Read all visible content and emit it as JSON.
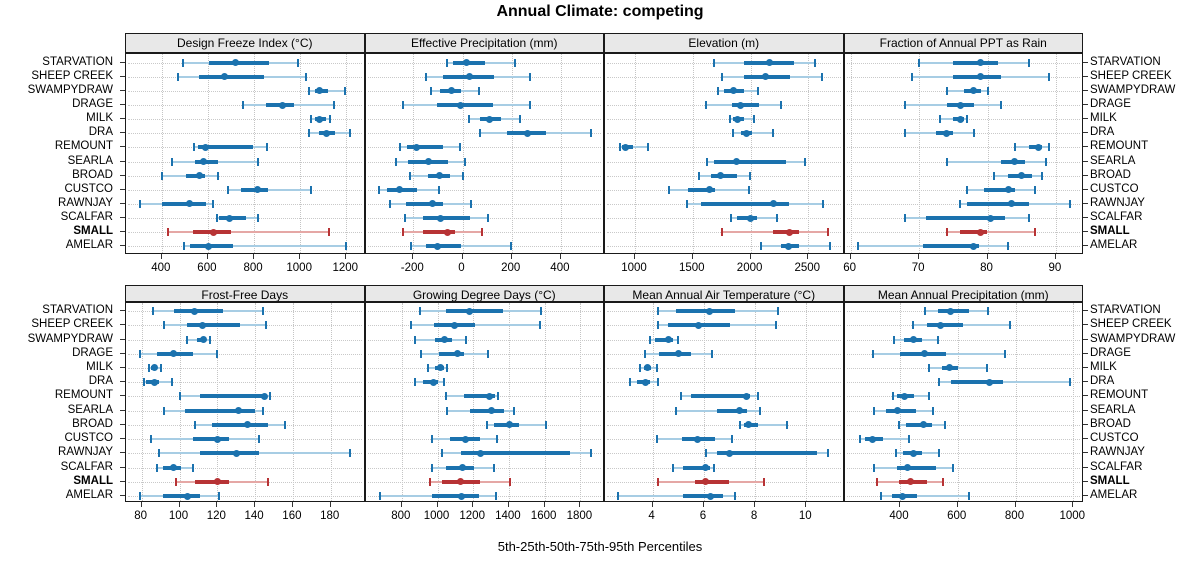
{
  "title": "Annual Climate: competing",
  "caption": "5th-25th-50th-75th-95th Percentiles",
  "sites": [
    "STARVATION",
    "SHEEP CREEK",
    "SWAMPYDRAW",
    "DRAGE",
    "MILK",
    "DRA",
    "REMOUNT",
    "SEARLA",
    "BROAD",
    "CUSTCO",
    "RAWNJAY",
    "SCALFAR",
    "SMALL",
    "AMELAR"
  ],
  "highlight_site": "SMALL",
  "colors": {
    "blue_dark": "#1b72ae",
    "blue_light": "#a7cde4",
    "red_dark": "#b73335",
    "red_light": "#e5a7a5",
    "strip_bg": "#e8e8e8",
    "grid": "#c4c4c4",
    "border": "#1a1a1a"
  },
  "chart_data": [
    {
      "type": "dotplot-percentiles",
      "title": "Design Freeze Index (°C)",
      "percentiles": [
        5,
        25,
        50,
        75,
        95
      ],
      "xlim": [
        245,
        1283
      ],
      "ticks": [
        400,
        600,
        800,
        1000,
        1200
      ],
      "values": [
        [
          490,
          605,
          720,
          865,
          990
        ],
        [
          470,
          560,
          670,
          845,
          1025
        ],
        [
          1040,
          1065,
          1085,
          1120,
          1195
        ],
        [
          750,
          850,
          925,
          975,
          1145
        ],
        [
          1045,
          1065,
          1085,
          1110,
          1130
        ],
        [
          1040,
          1080,
          1115,
          1150,
          1215
        ],
        [
          540,
          555,
          590,
          795,
          855
        ],
        [
          445,
          545,
          580,
          645,
          815
        ],
        [
          400,
          505,
          565,
          585,
          645
        ],
        [
          685,
          745,
          815,
          860,
          1045
        ],
        [
          305,
          400,
          520,
          590,
          620
        ],
        [
          640,
          650,
          695,
          765,
          815
        ],
        [
          425,
          535,
          625,
          700,
          1125
        ],
        [
          497,
          520,
          602,
          707,
          1200
        ]
      ]
    },
    {
      "type": "dotplot-percentiles",
      "title": "Effective Precipitation (mm)",
      "percentiles": [
        5,
        25,
        50,
        75,
        95
      ],
      "xlim": [
        -394,
        579
      ],
      "ticks": [
        -200,
        0,
        200,
        400
      ],
      "values": [
        [
          -65,
          -40,
          15,
          90,
          215
        ],
        [
          -150,
          -80,
          30,
          130,
          275
        ],
        [
          -130,
          -90,
          -45,
          -5,
          65
        ],
        [
          -240,
          -105,
          -10,
          125,
          275
        ],
        [
          25,
          70,
          110,
          155,
          235
        ],
        [
          70,
          180,
          265,
          340,
          520
        ],
        [
          -255,
          -225,
          -185,
          -80,
          -10
        ],
        [
          -270,
          -220,
          -140,
          -60,
          10
        ],
        [
          -215,
          -140,
          -95,
          -50,
          0
        ],
        [
          -340,
          -305,
          -255,
          -185,
          -95
        ],
        [
          -295,
          -230,
          -120,
          -80,
          35
        ],
        [
          -235,
          -160,
          -90,
          30,
          105
        ],
        [
          -240,
          -160,
          -60,
          -30,
          80
        ],
        [
          -210,
          -150,
          -100,
          -5,
          195
        ]
      ]
    },
    {
      "type": "dotplot-percentiles",
      "title": "Elevation (m)",
      "percentiles": [
        5,
        25,
        50,
        75,
        95
      ],
      "xlim": [
        740,
        2813
      ],
      "ticks": [
        1000,
        1500,
        2000,
        2500
      ],
      "values": [
        [
          1685,
          1945,
          2165,
          2375,
          2555
        ],
        [
          1755,
          1945,
          2125,
          2340,
          2620
        ],
        [
          1720,
          1770,
          1850,
          1945,
          2065
        ],
        [
          1615,
          1840,
          1915,
          2075,
          2260
        ],
        [
          1820,
          1850,
          1890,
          1945,
          2030
        ],
        [
          1850,
          1915,
          1965,
          2015,
          2190
        ],
        [
          870,
          890,
          920,
          985,
          1115
        ],
        [
          1620,
          1685,
          1880,
          2305,
          2470
        ],
        [
          1550,
          1655,
          1740,
          1880,
          1995
        ],
        [
          1290,
          1460,
          1640,
          1690,
          1985
        ],
        [
          1445,
          1570,
          2200,
          2335,
          2630
        ],
        [
          1830,
          1880,
          2000,
          2060,
          2225
        ],
        [
          1750,
          2190,
          2340,
          2420,
          2670
        ],
        [
          2090,
          2260,
          2330,
          2420,
          2690
        ]
      ]
    },
    {
      "type": "dotplot-percentiles",
      "title": "Fraction of Annual PPT as Rain",
      "percentiles": [
        5,
        25,
        50,
        75,
        95
      ],
      "xlim": [
        59.1,
        94.1
      ],
      "ticks": [
        60,
        70,
        80,
        90
      ],
      "values": [
        [
          70,
          75,
          79,
          81.5,
          86
        ],
        [
          69,
          75,
          79,
          82,
          89
        ],
        [
          74,
          76.5,
          78,
          79,
          80
        ],
        [
          68,
          74,
          76,
          78,
          82
        ],
        [
          73,
          75,
          76,
          76.5,
          77
        ],
        [
          68,
          72.5,
          74,
          75,
          78
        ],
        [
          84,
          86,
          87.5,
          88,
          89
        ],
        [
          74,
          82,
          84,
          85.5,
          88.5
        ],
        [
          81,
          83,
          85,
          86.5,
          88
        ],
        [
          77,
          79.5,
          83,
          84,
          87
        ],
        [
          76,
          77,
          83.5,
          86,
          92
        ],
        [
          68,
          71,
          80.5,
          82.5,
          86
        ],
        [
          74,
          76,
          79,
          80,
          87
        ],
        [
          61,
          70.5,
          78,
          78.8,
          83
        ]
      ]
    },
    {
      "type": "dotplot-percentiles",
      "title": "Frost-Free Days",
      "percentiles": [
        5,
        25,
        50,
        75,
        95
      ],
      "xlim": [
        71.7,
        198.4
      ],
      "ticks": [
        80,
        100,
        120,
        140,
        160,
        180
      ],
      "values": [
        [
          86,
          97,
          108,
          123,
          144
        ],
        [
          92,
          104,
          112,
          132,
          146
        ],
        [
          104,
          109,
          112.5,
          114,
          116
        ],
        [
          79,
          88,
          97,
          107,
          120
        ],
        [
          84,
          85,
          87,
          88,
          90
        ],
        [
          81,
          82,
          87,
          89,
          96
        ],
        [
          100,
          111,
          145,
          146.5,
          148
        ],
        [
          92,
          103,
          131,
          140,
          144
        ],
        [
          108,
          117,
          136,
          147,
          156
        ],
        [
          85,
          107,
          120,
          126,
          142
        ],
        [
          89,
          111,
          130,
          142,
          190
        ],
        [
          88,
          91,
          97,
          101,
          107
        ],
        [
          98,
          108,
          120,
          126,
          147
        ],
        [
          79,
          91,
          104,
          111,
          121
        ]
      ]
    },
    {
      "type": "dotplot-percentiles",
      "title": "Growing Degree Days (°C)",
      "percentiles": [
        5,
        25,
        50,
        75,
        95
      ],
      "xlim": [
        597,
        1938
      ],
      "ticks": [
        800,
        1000,
        1200,
        1400,
        1600,
        1800
      ],
      "values": [
        [
          900,
          1045,
          1180,
          1365,
          1580
        ],
        [
          850,
          980,
          1095,
          1210,
          1575
        ],
        [
          875,
          985,
          1040,
          1080,
          1160
        ],
        [
          910,
          1010,
          1110,
          1150,
          1285
        ],
        [
          945,
          985,
          1015,
          1035,
          1055
        ],
        [
          875,
          920,
          975,
          1005,
          1035
        ],
        [
          1050,
          1150,
          1290,
          1320,
          1340
        ],
        [
          1055,
          1180,
          1305,
          1375,
          1430
        ],
        [
          1275,
          1315,
          1405,
          1455,
          1605
        ],
        [
          970,
          1070,
          1155,
          1235,
          1335
        ],
        [
          1025,
          1130,
          1240,
          1740,
          1860
        ],
        [
          970,
          1045,
          1140,
          1205,
          1315
        ],
        [
          960,
          1025,
          1130,
          1240,
          1405
        ],
        [
          680,
          970,
          1135,
          1235,
          1330
        ]
      ]
    },
    {
      "type": "dotplot-percentiles",
      "title": "Mean Annual Air Temperature (°C)",
      "percentiles": [
        5,
        25,
        50,
        75,
        95
      ],
      "xlim": [
        2.14,
        11.49
      ],
      "ticks": [
        4,
        6,
        8,
        10
      ],
      "values": [
        [
          4.2,
          4.9,
          6.2,
          7.2,
          8.9
        ],
        [
          4.2,
          4.6,
          5.8,
          7.0,
          8.8
        ],
        [
          3.9,
          4.1,
          4.6,
          4.8,
          5.0
        ],
        [
          3.7,
          4.25,
          5.0,
          5.5,
          6.3
        ],
        [
          3.5,
          3.65,
          3.8,
          3.95,
          4.15
        ],
        [
          3.1,
          3.4,
          3.7,
          3.9,
          4.2
        ],
        [
          5.1,
          5.5,
          7.65,
          7.8,
          8.1
        ],
        [
          4.9,
          6.5,
          7.4,
          7.7,
          8.2
        ],
        [
          7.4,
          7.55,
          7.75,
          8.1,
          9.25
        ],
        [
          4.15,
          5.15,
          5.75,
          6.45,
          7.1
        ],
        [
          6.1,
          6.5,
          7.0,
          10.4,
          10.85
        ],
        [
          4.8,
          5.2,
          6.05,
          6.25,
          6.4
        ],
        [
          4.2,
          5.65,
          6.05,
          7.0,
          8.35
        ],
        [
          2.65,
          5.2,
          6.25,
          6.75,
          7.2
        ]
      ]
    },
    {
      "type": "dotplot-percentiles",
      "title": "Mean Annual Precipitation (mm)",
      "percentiles": [
        5,
        25,
        50,
        75,
        95
      ],
      "xlim": [
        208,
        1037
      ],
      "ticks": [
        400,
        600,
        800,
        1000
      ],
      "values": [
        [
          485,
          530,
          575,
          640,
          705
        ],
        [
          445,
          495,
          540,
          620,
          780
        ],
        [
          380,
          415,
          445,
          475,
          530
        ],
        [
          305,
          400,
          485,
          560,
          765
        ],
        [
          500,
          545,
          570,
          600,
          700
        ],
        [
          535,
          575,
          710,
          755,
          990
        ],
        [
          375,
          390,
          415,
          450,
          500
        ],
        [
          310,
          350,
          390,
          455,
          515
        ],
        [
          395,
          420,
          480,
          510,
          555
        ],
        [
          260,
          280,
          305,
          340,
          430
        ],
        [
          385,
          410,
          445,
          475,
          535
        ],
        [
          310,
          390,
          425,
          525,
          585
        ],
        [
          320,
          395,
          435,
          495,
          550
        ],
        [
          335,
          372,
          409,
          460,
          638
        ]
      ]
    }
  ]
}
